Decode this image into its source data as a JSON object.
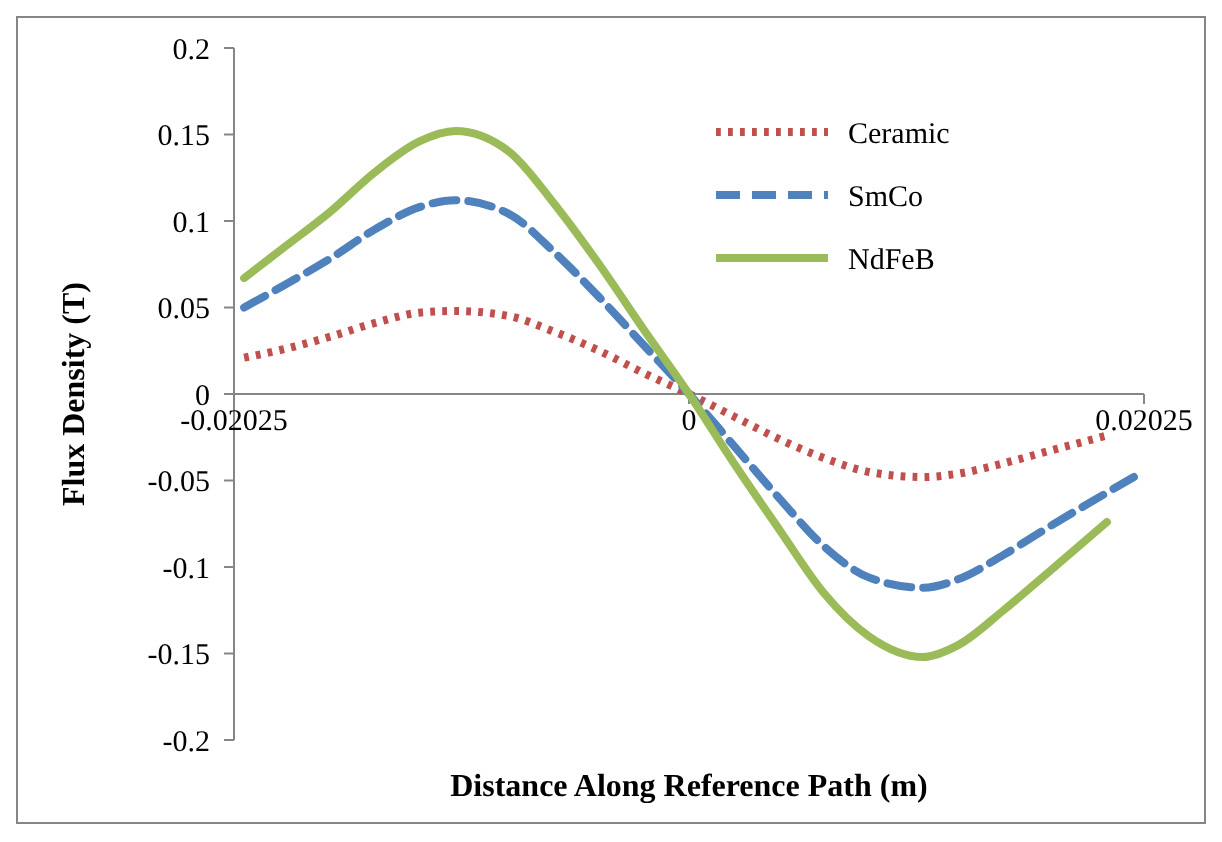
{
  "chart_data": {
    "type": "line",
    "xlabel": "Distance Along Reference Path (m)",
    "ylabel": "Flux Density (T)",
    "x": [
      -0.0198,
      -0.018,
      -0.016,
      -0.014,
      -0.012,
      -0.0104,
      -0.008,
      -0.006,
      -0.004,
      -0.002,
      0,
      0.002,
      0.004,
      0.006,
      0.008,
      0.0104,
      0.012,
      0.014,
      0.016,
      0.0186,
      0.0198
    ],
    "xlim": [
      -0.02025,
      0.02025
    ],
    "xticks": [
      -0.02025,
      0,
      0.02025
    ],
    "ylim": [
      -0.2,
      0.2
    ],
    "yticks": [
      -0.2,
      -0.15,
      -0.1,
      -0.05,
      0,
      0.05,
      0.1,
      0.15,
      0.2
    ],
    "grid": false,
    "legend": "top right",
    "marker": "none",
    "series": [
      {
        "name": "Ceramic",
        "color": "#c0504d",
        "line_style": "dotted",
        "values": [
          0.021,
          0.026,
          0.033,
          0.041,
          0.047,
          0.048,
          0.045,
          0.036,
          0.025,
          0.012,
          0,
          -0.013,
          -0.026,
          -0.037,
          -0.045,
          -0.048,
          -0.046,
          -0.04,
          -0.033,
          -0.024,
          null
        ]
      },
      {
        "name": "SmCo",
        "color": "#4f81bd",
        "line_style": "dashed",
        "values": [
          0.05,
          0.063,
          0.078,
          0.095,
          0.108,
          0.112,
          0.104,
          0.082,
          0.056,
          0.028,
          0,
          -0.03,
          -0.06,
          -0.088,
          -0.106,
          -0.112,
          -0.107,
          -0.093,
          -0.077,
          -0.057,
          -0.048
        ]
      },
      {
        "name": "NdFeB",
        "color": "#9bbb59",
        "line_style": "solid",
        "values": [
          0.067,
          0.085,
          0.105,
          0.128,
          0.146,
          0.152,
          0.14,
          0.11,
          0.075,
          0.037,
          0,
          -0.04,
          -0.078,
          -0.115,
          -0.14,
          -0.152,
          -0.145,
          -0.125,
          -0.103,
          -0.074,
          null
        ]
      }
    ]
  }
}
